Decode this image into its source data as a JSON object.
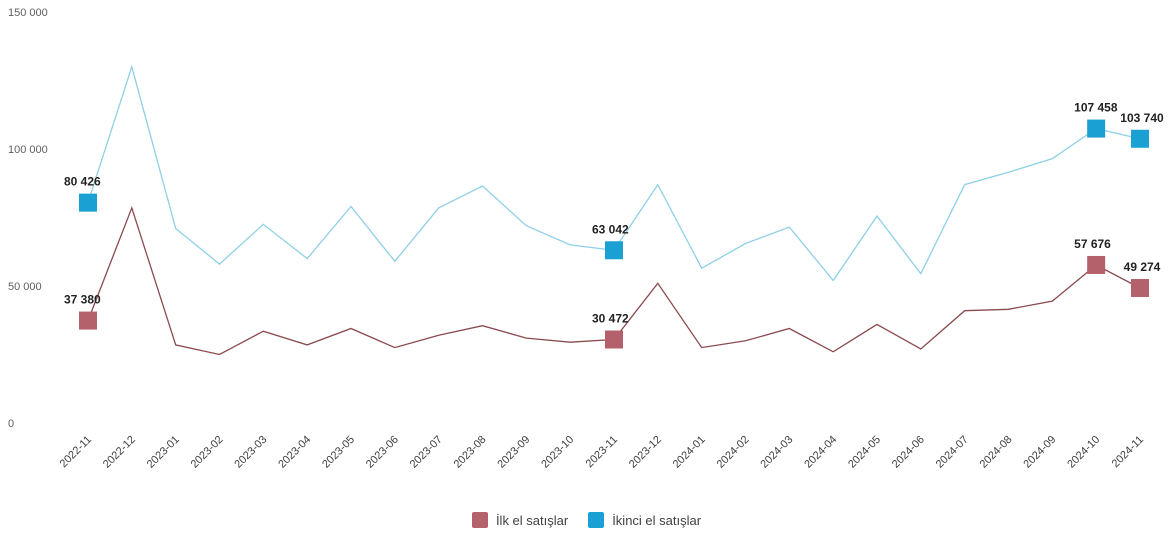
{
  "chart_data": {
    "type": "line",
    "categories": [
      "2022-11",
      "2022-12",
      "2023-01",
      "2023-02",
      "2023-03",
      "2023-04",
      "2023-05",
      "2023-06",
      "2023-07",
      "2023-08",
      "2023-09",
      "2023-10",
      "2023-11",
      "2023-12",
      "2024-01",
      "2024-02",
      "2024-03",
      "2024-04",
      "2024-05",
      "2024-06",
      "2024-07",
      "2024-08",
      "2024-09",
      "2024-10",
      "2024-11"
    ],
    "series": [
      {
        "name": "İlk el satışlar",
        "color": "#b5616b",
        "line_color": "#8a4a4f",
        "values": [
          37380,
          78500,
          28500,
          25000,
          33500,
          28500,
          34500,
          27500,
          32000,
          35500,
          31000,
          29500,
          30472,
          51000,
          27500,
          30000,
          34500,
          26000,
          36000,
          27000,
          41000,
          41500,
          44500,
          57676,
          49274
        ],
        "labels": {
          "0": "37 380",
          "12": "30 472",
          "23": "57 676",
          "24": "49 274"
        }
      },
      {
        "name": "İkinci el satışlar",
        "color": "#1aa0d2",
        "line_color": "#8fd0e6",
        "values": [
          80426,
          130000,
          71000,
          58000,
          72500,
          60000,
          79000,
          59000,
          78500,
          86500,
          72000,
          65000,
          63042,
          87000,
          56500,
          65500,
          71500,
          52000,
          75500,
          54500,
          87000,
          91500,
          96500,
          107458,
          103740
        ],
        "labels": {
          "0": "80 426",
          "12": "63 042",
          "23": "107 458",
          "24": "103 740"
        }
      }
    ],
    "yticks": [
      "0",
      "50 000",
      "100 000",
      "150 000"
    ],
    "ylim": [
      0,
      150000
    ],
    "xlabel": "",
    "ylabel": "",
    "legend_position": "bottom-center"
  }
}
